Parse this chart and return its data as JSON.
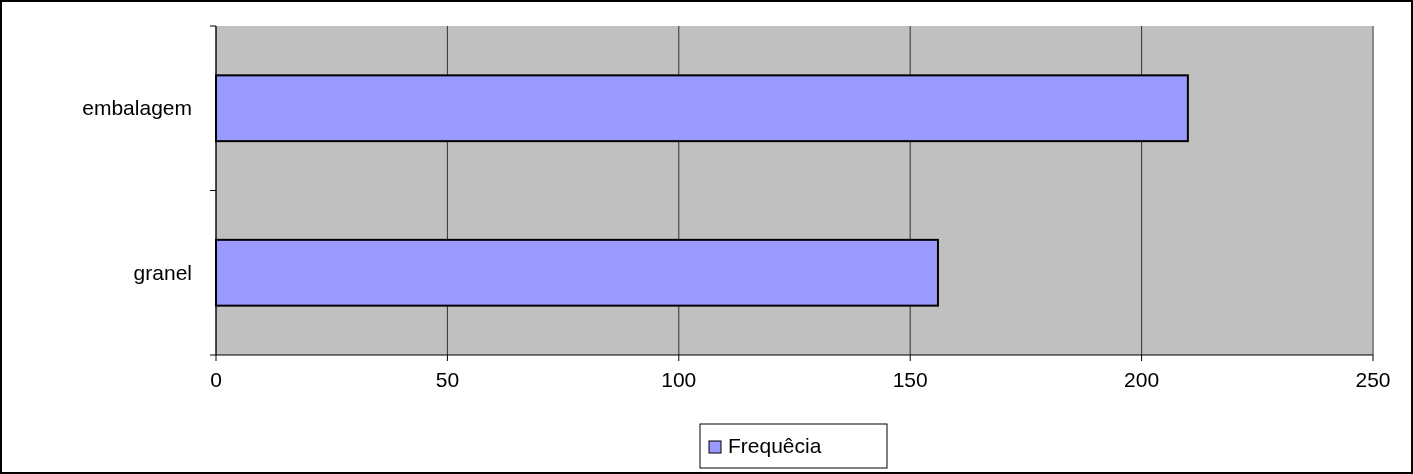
{
  "chart_data": {
    "type": "bar",
    "orientation": "horizontal",
    "categories": [
      "embalagem",
      "granel"
    ],
    "series": [
      {
        "name": "Frequêcia",
        "color": "#9999ff",
        "values": [
          210,
          156
        ]
      }
    ],
    "xlim": [
      0,
      250
    ],
    "xticks": [
      0,
      50,
      100,
      150,
      200,
      250
    ],
    "grid": "x",
    "legend": "bottom"
  }
}
